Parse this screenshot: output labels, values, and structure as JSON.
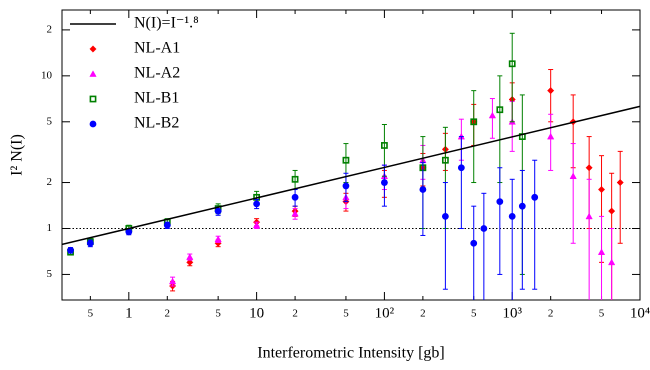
{
  "chart_data": {
    "type": "scatter",
    "x_label": "Interferometric Intensity [gb]",
    "y_label": "I² N(I)",
    "log_x": true,
    "log_y": true,
    "xlim": [
      0.3,
      10000
    ],
    "ylim": [
      0.34,
      27
    ],
    "xticks": [
      {
        "value": 0.5,
        "label": "5"
      },
      1,
      {
        "value": 2,
        "label": "2"
      },
      {
        "value": 5,
        "label": "5"
      },
      10,
      {
        "value": 20,
        "label": "2"
      },
      {
        "value": 50,
        "label": "5"
      },
      {
        "value": 100,
        "label": "10²"
      },
      {
        "value": 200,
        "label": "2"
      },
      {
        "value": 500,
        "label": "5"
      },
      {
        "value": 1000,
        "label": "10³"
      },
      {
        "value": 2000,
        "label": "2"
      },
      {
        "value": 5000,
        "label": "5"
      },
      {
        "value": 10000,
        "label": "10⁴"
      }
    ],
    "yticks": [
      {
        "value": 0.5,
        "label": "5"
      },
      1,
      2,
      5,
      10,
      {
        "value": 20,
        "label": "2"
      }
    ],
    "reference_line": 1,
    "fit": {
      "name": "N(I)=I⁻¹.⁸",
      "color": "#000000",
      "x": [
        0.3,
        10000
      ],
      "values": [
        0.786,
        6.31
      ]
    },
    "legend": "upper left",
    "series": [
      {
        "name": "NL-A1",
        "color": "#ff0000",
        "marker": "diamond",
        "x": [
          2.2,
          3,
          5,
          10,
          20,
          50,
          100,
          200,
          300,
          500,
          1000,
          2000,
          3000,
          4000,
          5000,
          6000,
          7000
        ],
        "values": [
          0.42,
          0.6,
          0.8,
          1.1,
          1.3,
          1.5,
          2.0,
          2.5,
          3.3,
          5.0,
          7.0,
          8.0,
          5.0,
          2.5,
          1.8,
          1.3,
          2.0
        ],
        "errors": [
          0.03,
          0.03,
          0.04,
          0.06,
          0.1,
          0.2,
          0.4,
          0.6,
          0.9,
          1.5,
          2.0,
          3.0,
          2.5,
          1.5,
          1.2,
          1.0,
          1.2
        ]
      },
      {
        "name": "NL-A2",
        "color": "#ff00ff",
        "marker": "triangle",
        "x": [
          2.2,
          3,
          5,
          10,
          20,
          50,
          100,
          200,
          400,
          700,
          1000,
          2000,
          3000,
          4000,
          5000,
          6000
        ],
        "values": [
          0.45,
          0.65,
          0.85,
          1.05,
          1.25,
          1.6,
          2.2,
          2.8,
          4.0,
          5.5,
          5.0,
          4.0,
          2.2,
          1.2,
          0.7,
          0.6
        ],
        "errors": [
          0.03,
          0.03,
          0.04,
          0.05,
          0.1,
          0.25,
          0.4,
          0.7,
          1.2,
          1.6,
          1.8,
          1.6,
          1.4,
          0.9,
          0.5,
          0.4
        ]
      },
      {
        "name": "NL-B1",
        "color": "#008000",
        "marker": "square",
        "x": [
          0.35,
          0.5,
          1,
          2,
          5,
          10,
          20,
          50,
          100,
          200,
          300,
          500,
          800,
          1000,
          1200
        ],
        "values": [
          0.7,
          0.82,
          1.0,
          1.1,
          1.35,
          1.6,
          2.1,
          2.8,
          3.5,
          2.5,
          2.8,
          5.0,
          6.0,
          12.0,
          4.0
        ],
        "errors": [
          0.03,
          0.04,
          0.05,
          0.06,
          0.1,
          0.15,
          0.3,
          0.8,
          1.3,
          1.5,
          1.8,
          3.0,
          4.0,
          7.0,
          3.5
        ]
      },
      {
        "name": "NL-B2",
        "color": "#0000ff",
        "marker": "circle",
        "x": [
          0.35,
          0.5,
          1,
          2,
          5,
          10,
          20,
          50,
          100,
          200,
          300,
          400,
          500,
          600,
          800,
          1000,
          1200,
          1500
        ],
        "values": [
          0.72,
          0.8,
          0.95,
          1.05,
          1.3,
          1.45,
          1.6,
          1.9,
          2.0,
          1.8,
          1.2,
          2.5,
          0.8,
          1.0,
          1.5,
          1.2,
          1.4,
          1.6
        ],
        "errors": [
          0.03,
          0.04,
          0.04,
          0.05,
          0.08,
          0.1,
          0.2,
          0.4,
          0.6,
          0.9,
          0.8,
          1.5,
          0.6,
          0.7,
          1.0,
          0.9,
          1.0,
          1.2
        ]
      }
    ]
  }
}
